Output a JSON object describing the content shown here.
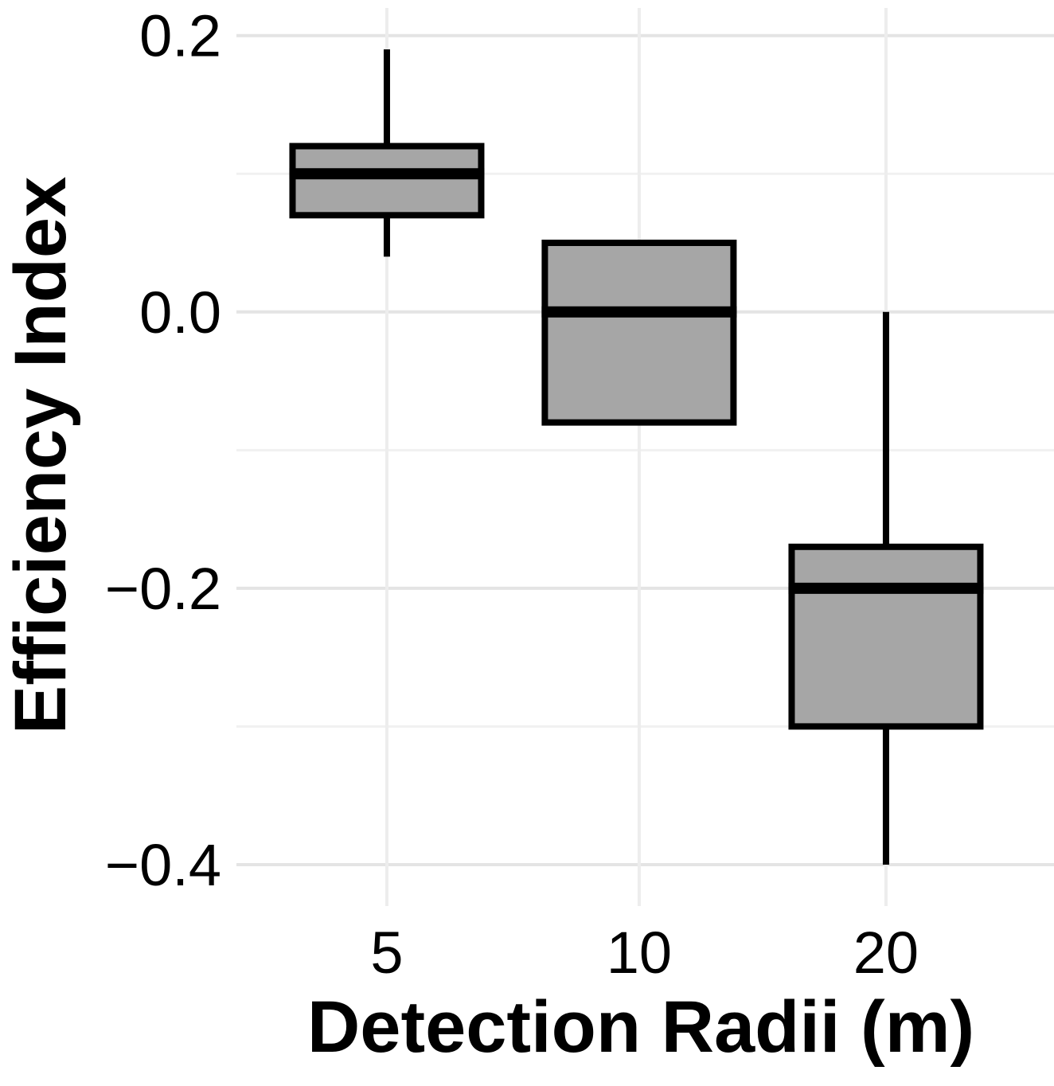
{
  "figure": {
    "background": "#ffffff",
    "colors": {
      "box_fill": "#a6a6a6",
      "box_stroke": "#000000",
      "median_stroke": "#000000",
      "whisker_stroke": "#000000",
      "grid_major": "#e4e4e4",
      "grid_minor": "#f1f1f1",
      "grid_vertical": "#ededed",
      "text": "#000000"
    }
  },
  "chart_data": {
    "type": "boxplot",
    "title": "",
    "xlabel": "Detection Radii (m)",
    "ylabel": "Efficiency Index",
    "categories": [
      "5",
      "10",
      "20"
    ],
    "x_tick_labels": [
      "5",
      "10",
      "20"
    ],
    "y_tick_labels": [
      "0.2",
      "0.0",
      "−0.2",
      "−0.4"
    ],
    "y_tick_values": [
      0.2,
      0.0,
      -0.2,
      -0.4
    ],
    "y_minor_gridlines": [
      0.1,
      -0.1,
      -0.3
    ],
    "ylim": [
      -0.43,
      0.22
    ],
    "grid": true,
    "legend": null,
    "series": [
      {
        "category": "5",
        "whisker_low": 0.04,
        "q1": 0.07,
        "median": 0.1,
        "q3": 0.12,
        "whisker_high": 0.19,
        "outliers": []
      },
      {
        "category": "10",
        "whisker_low": null,
        "q1": -0.08,
        "median": 0.0,
        "q3": 0.05,
        "whisker_high": null,
        "outliers": []
      },
      {
        "category": "20",
        "whisker_low": -0.4,
        "q1": -0.3,
        "median": -0.2,
        "q3": -0.17,
        "whisker_high": 0.0,
        "outliers": []
      }
    ]
  }
}
